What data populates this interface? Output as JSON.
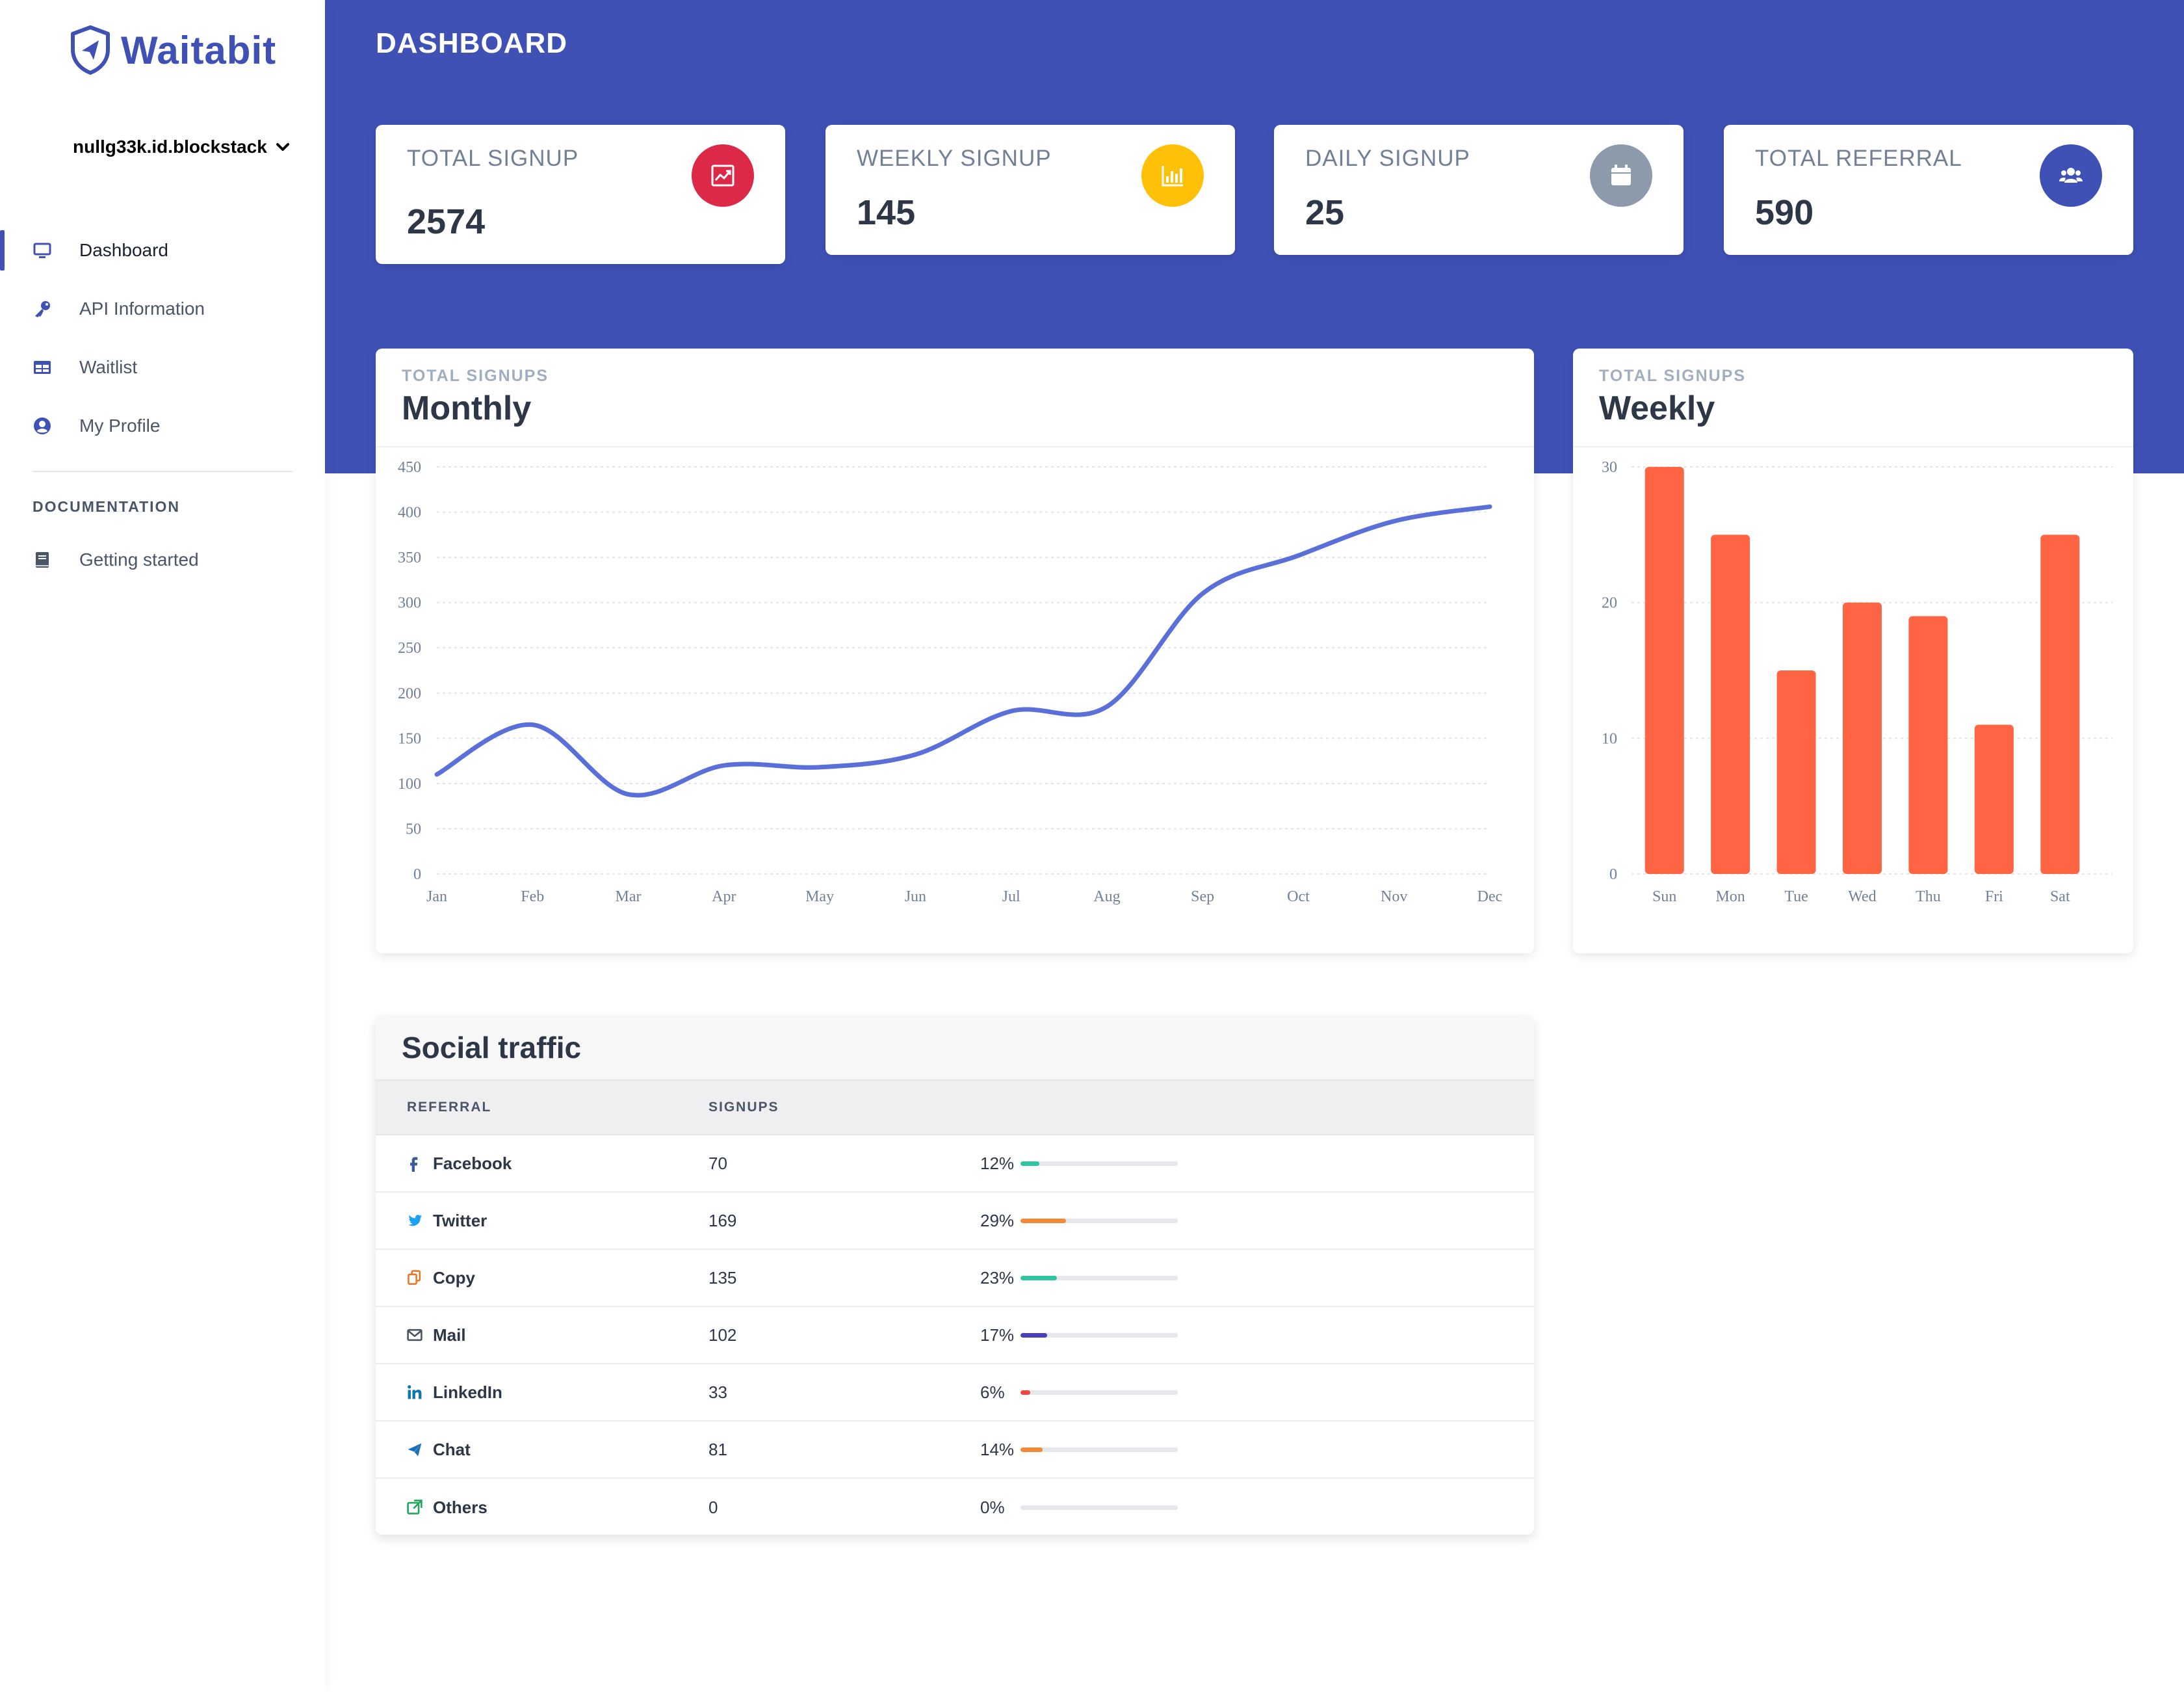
{
  "app": {
    "name": "Waitabit",
    "account": "nullg33k.id.blockstack"
  },
  "sidebar": {
    "items": [
      {
        "label": "Dashboard",
        "icon": "monitor-icon",
        "active": true
      },
      {
        "label": "API Information",
        "icon": "key-icon"
      },
      {
        "label": "Waitlist",
        "icon": "table-icon"
      },
      {
        "label": "My Profile",
        "icon": "user-circle-icon"
      }
    ],
    "doc_heading": "DOCUMENTATION",
    "doc_items": [
      {
        "label": "Getting started",
        "icon": "book-icon"
      }
    ]
  },
  "header": {
    "title": "DASHBOARD"
  },
  "stats": [
    {
      "label": "TOTAL SIGNUP",
      "value": "2574",
      "icon": "trend-chart-icon",
      "color": "#dc2948"
    },
    {
      "label": "WEEKLY SIGNUP",
      "value": "145",
      "icon": "bar-chart-icon",
      "color": "#ffc107"
    },
    {
      "label": "DAILY SIGNUP",
      "value": "25",
      "icon": "calendar-icon",
      "color": "#8d9aab"
    },
    {
      "label": "TOTAL REFERRAL",
      "value": "590",
      "icon": "users-icon",
      "color": "#3f51b5"
    }
  ],
  "monthly": {
    "kicker": "TOTAL SIGNUPS",
    "title": "Monthly",
    "chart_data": {
      "type": "line",
      "title": "Monthly",
      "categories": [
        "Jan",
        "Feb",
        "Mar",
        "Apr",
        "May",
        "Jun",
        "Jul",
        "Aug",
        "Sep",
        "Oct",
        "Nov",
        "Dec"
      ],
      "values": [
        110,
        165,
        88,
        120,
        118,
        132,
        180,
        185,
        310,
        352,
        390,
        406
      ],
      "ylim": [
        0,
        450
      ],
      "yticks": [
        0,
        50,
        100,
        150,
        200,
        250,
        300,
        350,
        400,
        450
      ],
      "color": "#5a6fd8"
    }
  },
  "weekly": {
    "kicker": "TOTAL SIGNUPS",
    "title": "Weekly",
    "chart_data": {
      "type": "bar",
      "title": "Weekly",
      "categories": [
        "Sun",
        "Mon",
        "Tue",
        "Wed",
        "Thu",
        "Fri",
        "Sat"
      ],
      "values": [
        30,
        25,
        15,
        20,
        19,
        11,
        25
      ],
      "ylim": [
        0,
        30
      ],
      "yticks": [
        0,
        10,
        20,
        30
      ],
      "color": "#ff6542"
    }
  },
  "social": {
    "title": "Social traffic",
    "columns": [
      "REFERRAL",
      "SIGNUPS"
    ],
    "rows": [
      {
        "name": "Facebook",
        "signups": "70",
        "pct": "12%",
        "fraction": 0.12,
        "icon": "facebook-icon",
        "iconColor": "#3b5998",
        "barColor": "#2ec4a4"
      },
      {
        "name": "Twitter",
        "signups": "169",
        "pct": "29%",
        "fraction": 0.29,
        "icon": "twitter-icon",
        "iconColor": "#1da1f2",
        "barColor": "#f08a3a"
      },
      {
        "name": "Copy",
        "signups": "135",
        "pct": "23%",
        "fraction": 0.23,
        "icon": "copy-icon",
        "iconColor": "#e8772a",
        "barColor": "#2ec4a4"
      },
      {
        "name": "Mail",
        "signups": "102",
        "pct": "17%",
        "fraction": 0.17,
        "icon": "mail-icon",
        "iconColor": "#4a5568",
        "barColor": "#4a3fb5"
      },
      {
        "name": "LinkedIn",
        "signups": "33",
        "pct": "6%",
        "fraction": 0.06,
        "icon": "linkedin-icon",
        "iconColor": "#0e76a8",
        "barColor": "#ef4444"
      },
      {
        "name": "Chat",
        "signups": "81",
        "pct": "14%",
        "fraction": 0.14,
        "icon": "send-icon",
        "iconColor": "#1e6fb8",
        "barColor": "#f08a3a"
      },
      {
        "name": "Others",
        "signups": "0",
        "pct": "0%",
        "fraction": 0.0,
        "icon": "external-link-icon",
        "iconColor": "#22a55a",
        "barColor": "#2ec4a4"
      }
    ]
  }
}
